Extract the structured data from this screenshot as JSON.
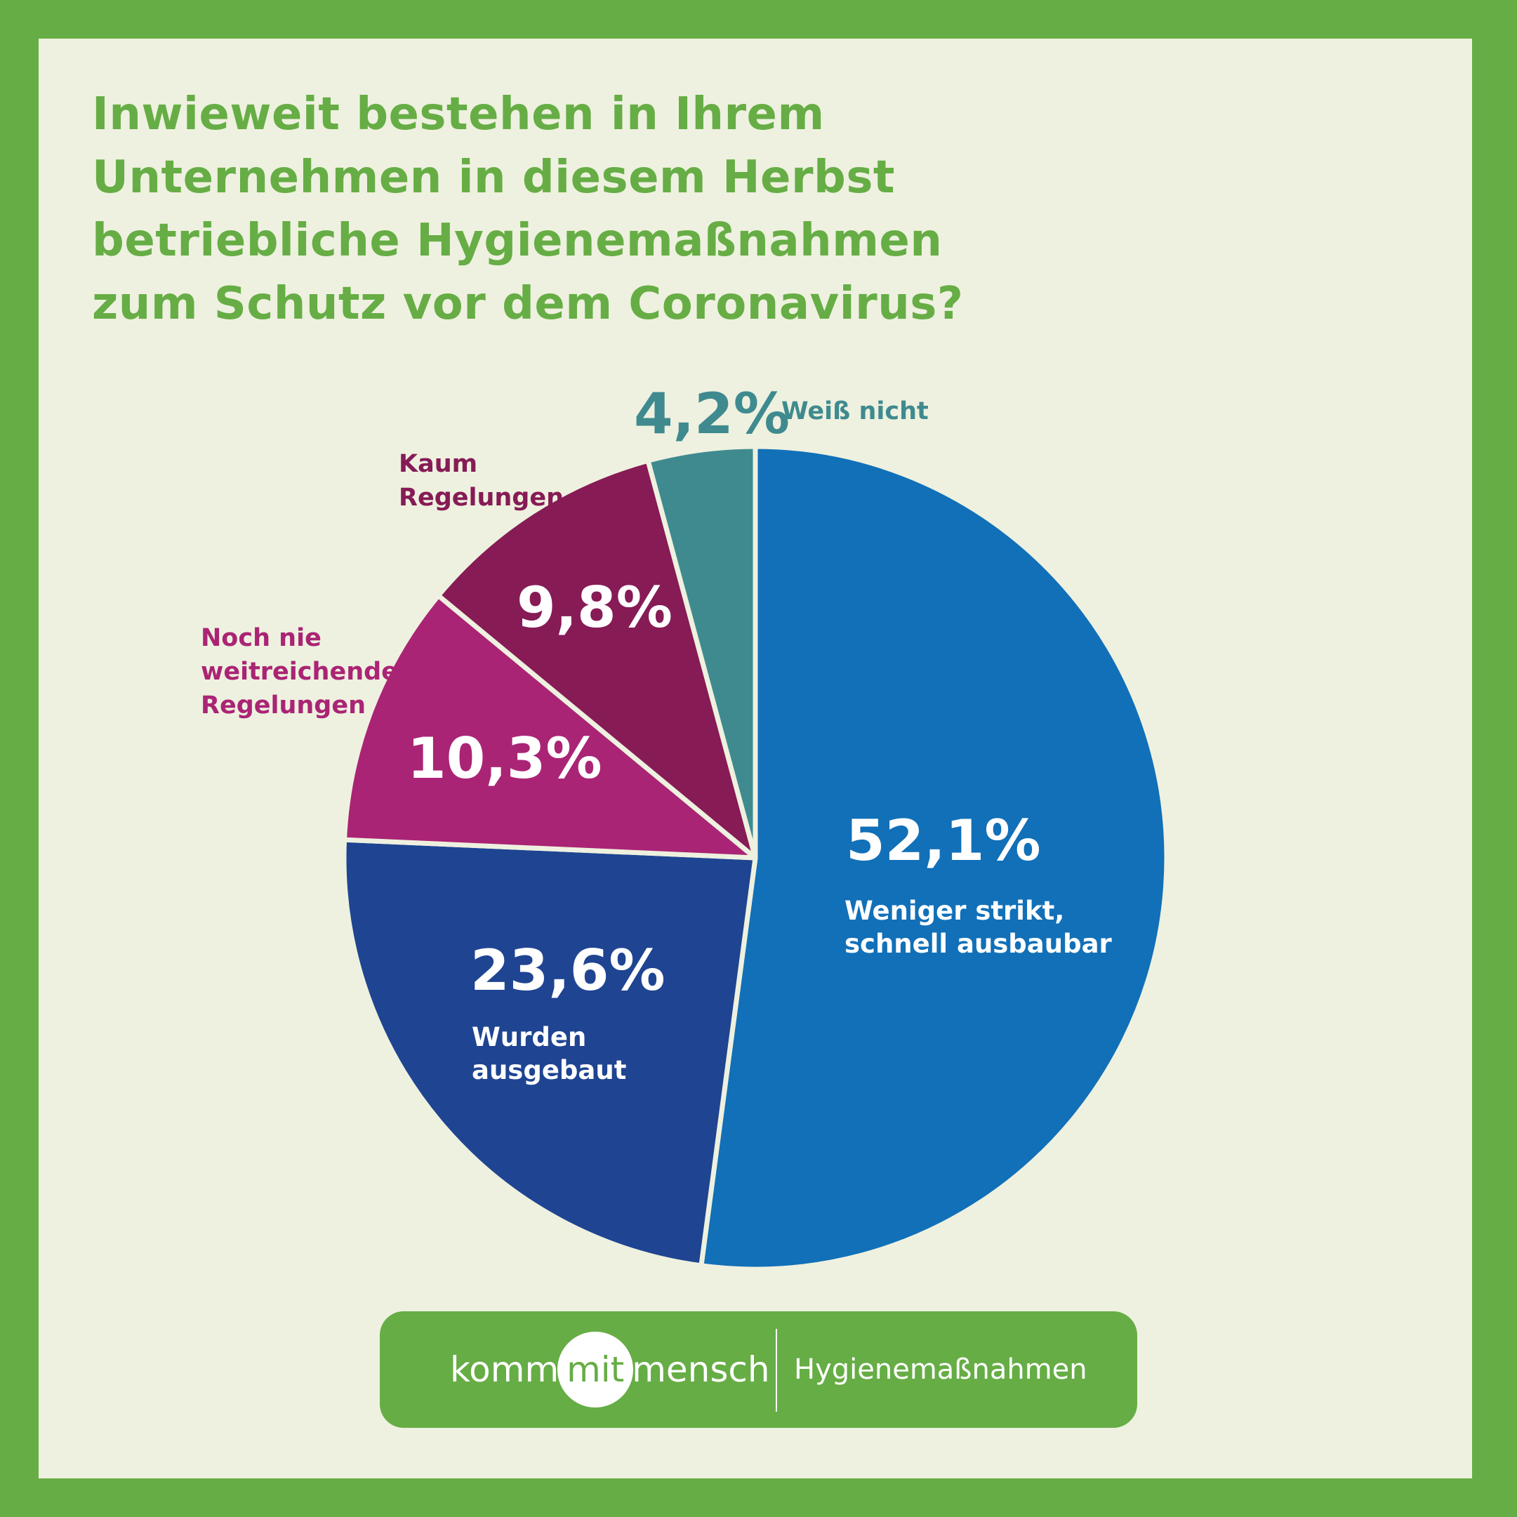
{
  "colors": {
    "border": "#66ad45",
    "background": "#eef1df",
    "title": "#66ad45",
    "label_light": "#ffffff"
  },
  "chart_data": {
    "type": "pie",
    "title_lines": [
      "Inwieweit bestehen in Ihrem",
      "Unternehmen in diesem Herbst",
      "betriebliche Hygienemaßnahmen",
      "zum Schutz vor dem Coronavirus?"
    ],
    "start_angle_deg": 0,
    "direction": "clockwise",
    "slices": [
      {
        "id": "weniger-strikt",
        "label_lines": [
          "Weniger strikt,",
          "schnell ausbaubar"
        ],
        "value": 52.1,
        "value_label": "52,1%",
        "color": "#1170b8",
        "label_color": "#ffffff",
        "label_position": "inside"
      },
      {
        "id": "ausgebaut",
        "label_lines": [
          "Wurden",
          "ausgebaut"
        ],
        "value": 23.6,
        "value_label": "23,6%",
        "color": "#1f4492",
        "label_color": "#ffffff",
        "label_position": "inside"
      },
      {
        "id": "noch-nie",
        "label_lines": [
          "Noch nie",
          "weitreichende",
          "Regelungen"
        ],
        "value": 10.3,
        "value_label": "10,3%",
        "color": "#aa2475",
        "label_color": "#aa2475",
        "label_position": "outside"
      },
      {
        "id": "kaum",
        "label_lines": [
          "Kaum",
          "Regelungen"
        ],
        "value": 9.8,
        "value_label": "9,8%",
        "color": "#861b56",
        "label_color": "#861b56",
        "label_position": "outside"
      },
      {
        "id": "weiss-nicht",
        "label_lines": [
          "Weiß nicht"
        ],
        "value": 4.2,
        "value_label": "4,2%",
        "color": "#3f8a8f",
        "label_color": "#3f8a8f",
        "label_position": "outside"
      }
    ]
  },
  "footer": {
    "brand_left": "komm",
    "brand_mid": "mit",
    "brand_right": "mensch",
    "topic": "Hygienemaßnahmen"
  }
}
